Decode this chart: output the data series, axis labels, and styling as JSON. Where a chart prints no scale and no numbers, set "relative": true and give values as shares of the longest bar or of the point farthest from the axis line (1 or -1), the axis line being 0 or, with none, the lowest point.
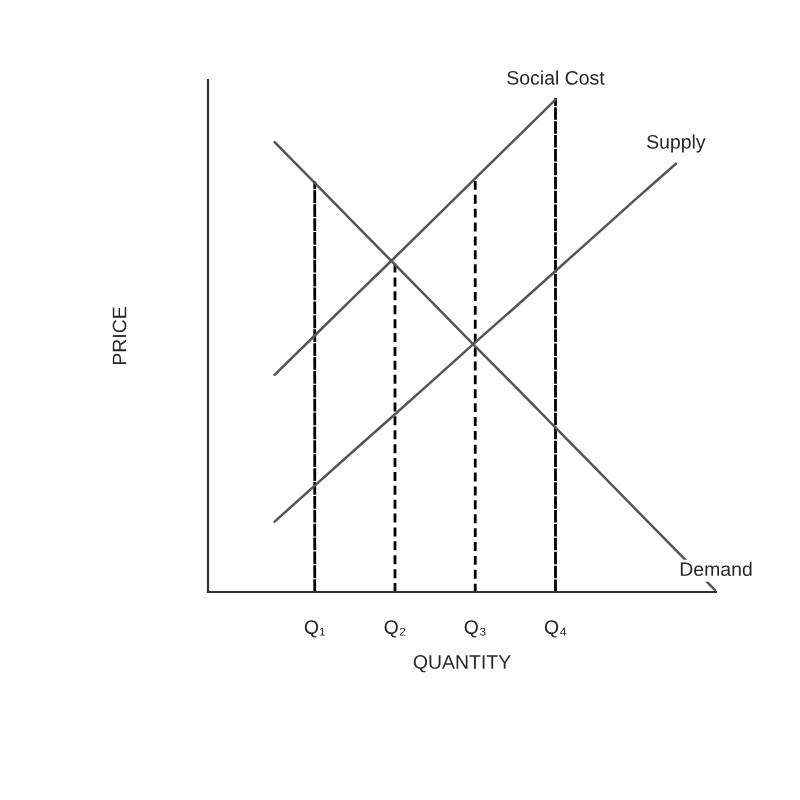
{
  "chart_data": {
    "type": "line",
    "relative": true,
    "xlabel": "QUANTITY",
    "ylabel": "PRICE",
    "tick_labels": "x",
    "grid": false,
    "legend": false,
    "marker": "none",
    "categories": [
      null,
      "Q₁",
      null,
      "Q₂",
      null,
      "Q₃",
      null,
      "Q₄",
      null,
      null,
      null,
      null
    ],
    "series": [
      {
        "name": "Social Cost",
        "color": "#555555",
        "line_style": "solid",
        "values": [
          0.441,
          0.521,
          0.601,
          0.68,
          0.76,
          0.84,
          0.92,
          1.0,
          null,
          null,
          null,
          null
        ]
      },
      {
        "name": "Supply",
        "color": "#555555",
        "line_style": "solid",
        "values": [
          0.143,
          0.216,
          0.289,
          0.361,
          0.434,
          0.507,
          0.579,
          0.652,
          0.725,
          0.798,
          0.87,
          null
        ]
      },
      {
        "name": "Demand",
        "color": "#555555",
        "line_style": "solid",
        "values": [
          0.914,
          0.831,
          0.748,
          0.665,
          0.582,
          0.499,
          0.417,
          0.334,
          0.251,
          0.168,
          0.085,
          0.002
        ]
      },
      {
        "type": "bar",
        "color": "#000000",
        "line_style": "dashed",
        "values": [
          null,
          0.831,
          null,
          0.672,
          null,
          0.84,
          null,
          1.0,
          null,
          null,
          null,
          null
        ]
      }
    ]
  }
}
